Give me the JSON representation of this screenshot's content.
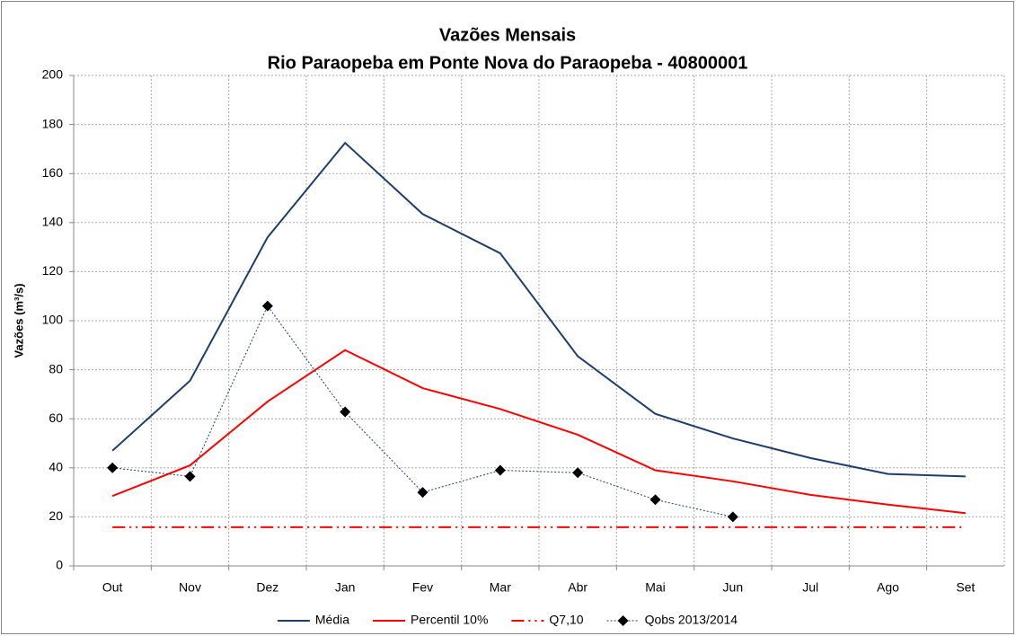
{
  "chart_data": {
    "type": "line",
    "title": "Vazões Mensais",
    "subtitle": "Rio Paraopeba em Ponte Nova do Paraopeba - 40800001",
    "y_label": "Vazões (m³/s)",
    "categories": [
      "Out",
      "Nov",
      "Dez",
      "Jan",
      "Fev",
      "Mar",
      "Abr",
      "Mai",
      "Jun",
      "Jul",
      "Ago",
      "Set"
    ],
    "ylim": [
      0,
      200
    ],
    "yticks": [
      0,
      20,
      40,
      60,
      80,
      100,
      120,
      140,
      160,
      180,
      200
    ],
    "grid": true,
    "legend": "bottom",
    "series": [
      {
        "name": "Média",
        "color": "#1f3d6b",
        "line_style": "solid",
        "marker": "none",
        "values": [
          47,
          75.5,
          134,
          172.5,
          143.5,
          127.5,
          85.5,
          62,
          52,
          44,
          37.5,
          36.5
        ]
      },
      {
        "name": "Percentil 10%",
        "color": "#ff0000",
        "line_style": "solid",
        "marker": "none",
        "values": [
          28.5,
          41,
          67,
          88,
          72.5,
          64,
          53.5,
          39,
          34.5,
          29,
          25,
          21.5
        ]
      },
      {
        "name": "Q7,10",
        "color": "#ff0000",
        "line_style": "dashdotdot",
        "marker": "none",
        "values": [
          15.8,
          15.8,
          15.8,
          15.8,
          15.8,
          15.8,
          15.8,
          15.8,
          15.8,
          15.8,
          15.8,
          15.8
        ]
      },
      {
        "name": "Qobs 2013/2014",
        "color": "#1f3d6b",
        "line_style": "dotted",
        "marker": "diamond",
        "values": [
          40,
          36.5,
          106,
          62.8,
          30,
          39,
          38,
          27,
          20,
          null,
          null,
          null
        ]
      }
    ]
  }
}
